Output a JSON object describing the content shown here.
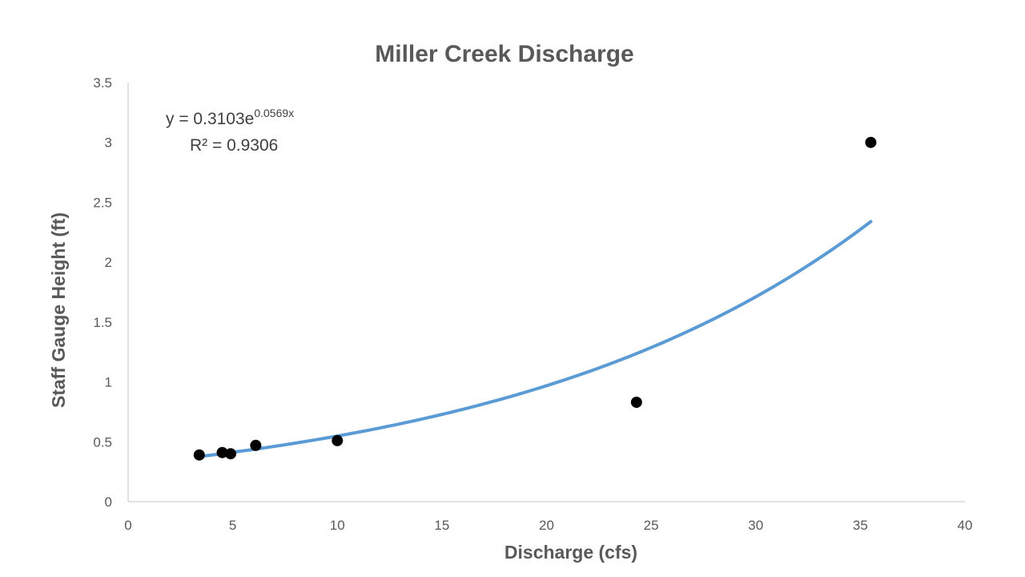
{
  "chart_data": {
    "type": "scatter",
    "title": "Miller Creek Discharge",
    "xlabel": "Discharge (cfs)",
    "ylabel": "Staff Gauge Height (ft)",
    "xlim": [
      0,
      40
    ],
    "ylim": [
      0,
      3.5
    ],
    "x_ticks": [
      "0",
      "5",
      "10",
      "15",
      "20",
      "25",
      "30",
      "35",
      "40"
    ],
    "y_ticks": [
      "0",
      "0.5",
      "1",
      "1.5",
      "2",
      "2.5",
      "3",
      "3.5"
    ],
    "grid": false,
    "legend": "none",
    "points": [
      {
        "x": 3.4,
        "y": 0.39
      },
      {
        "x": 4.5,
        "y": 0.41
      },
      {
        "x": 4.9,
        "y": 0.4
      },
      {
        "x": 6.1,
        "y": 0.47
      },
      {
        "x": 10.0,
        "y": 0.51
      },
      {
        "x": 24.3,
        "y": 0.83
      },
      {
        "x": 35.5,
        "y": 3.0
      }
    ],
    "trendline": {
      "type": "exponential",
      "a": 0.3103,
      "b": 0.0569,
      "x_range": [
        3.4,
        35.5
      ],
      "equation_prefix": "y = 0.3103e",
      "equation_exponent": "0.0569x",
      "r_squared_text": "R² = 0.9306"
    },
    "colors": {
      "points": "#000000",
      "trendline": "#5b9bd5",
      "axis": "#d9d9d9",
      "text": "#595959"
    }
  }
}
